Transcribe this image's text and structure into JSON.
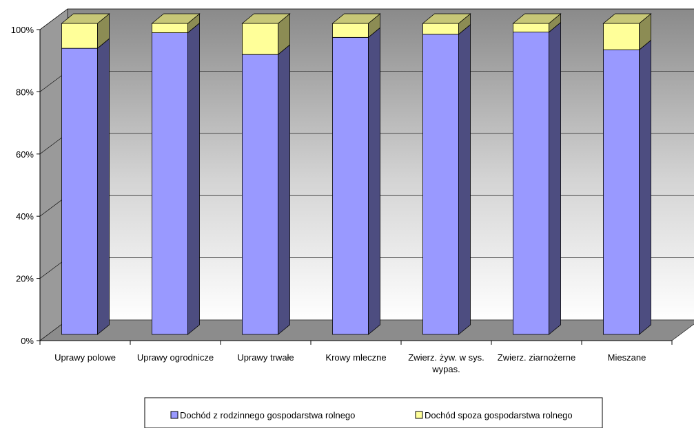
{
  "chart_data": {
    "type": "bar",
    "stacked": true,
    "percent_stacked": true,
    "three_d": true,
    "categories": [
      [
        "Uprawy polowe"
      ],
      [
        "Uprawy ogrodnicze"
      ],
      [
        "Uprawy trwałe"
      ],
      [
        "Krowy mleczne"
      ],
      [
        "Zwierz. żyw. w sys.",
        "wypas."
      ],
      [
        "Zwierz. ziarnożerne"
      ],
      [
        "Mieszane"
      ]
    ],
    "series": [
      {
        "name": "Dochód z rodzinnego gospodarstwa rolnego",
        "color": "#9999ff",
        "values": [
          92,
          97,
          90,
          95.5,
          96.5,
          97.2,
          91.5
        ]
      },
      {
        "name": "Dochód spoza gospodarstwa rolnego",
        "color": "#ffff99",
        "values": [
          8,
          3,
          10,
          4.5,
          3.5,
          2.8,
          8.5
        ]
      }
    ],
    "y_ticks": [
      "0%",
      "20%",
      "40%",
      "60%",
      "80%",
      "100%"
    ],
    "ylim": [
      0,
      100
    ],
    "grid": true,
    "legend_position": "bottom",
    "title": "",
    "xlabel": "",
    "ylabel": ""
  }
}
